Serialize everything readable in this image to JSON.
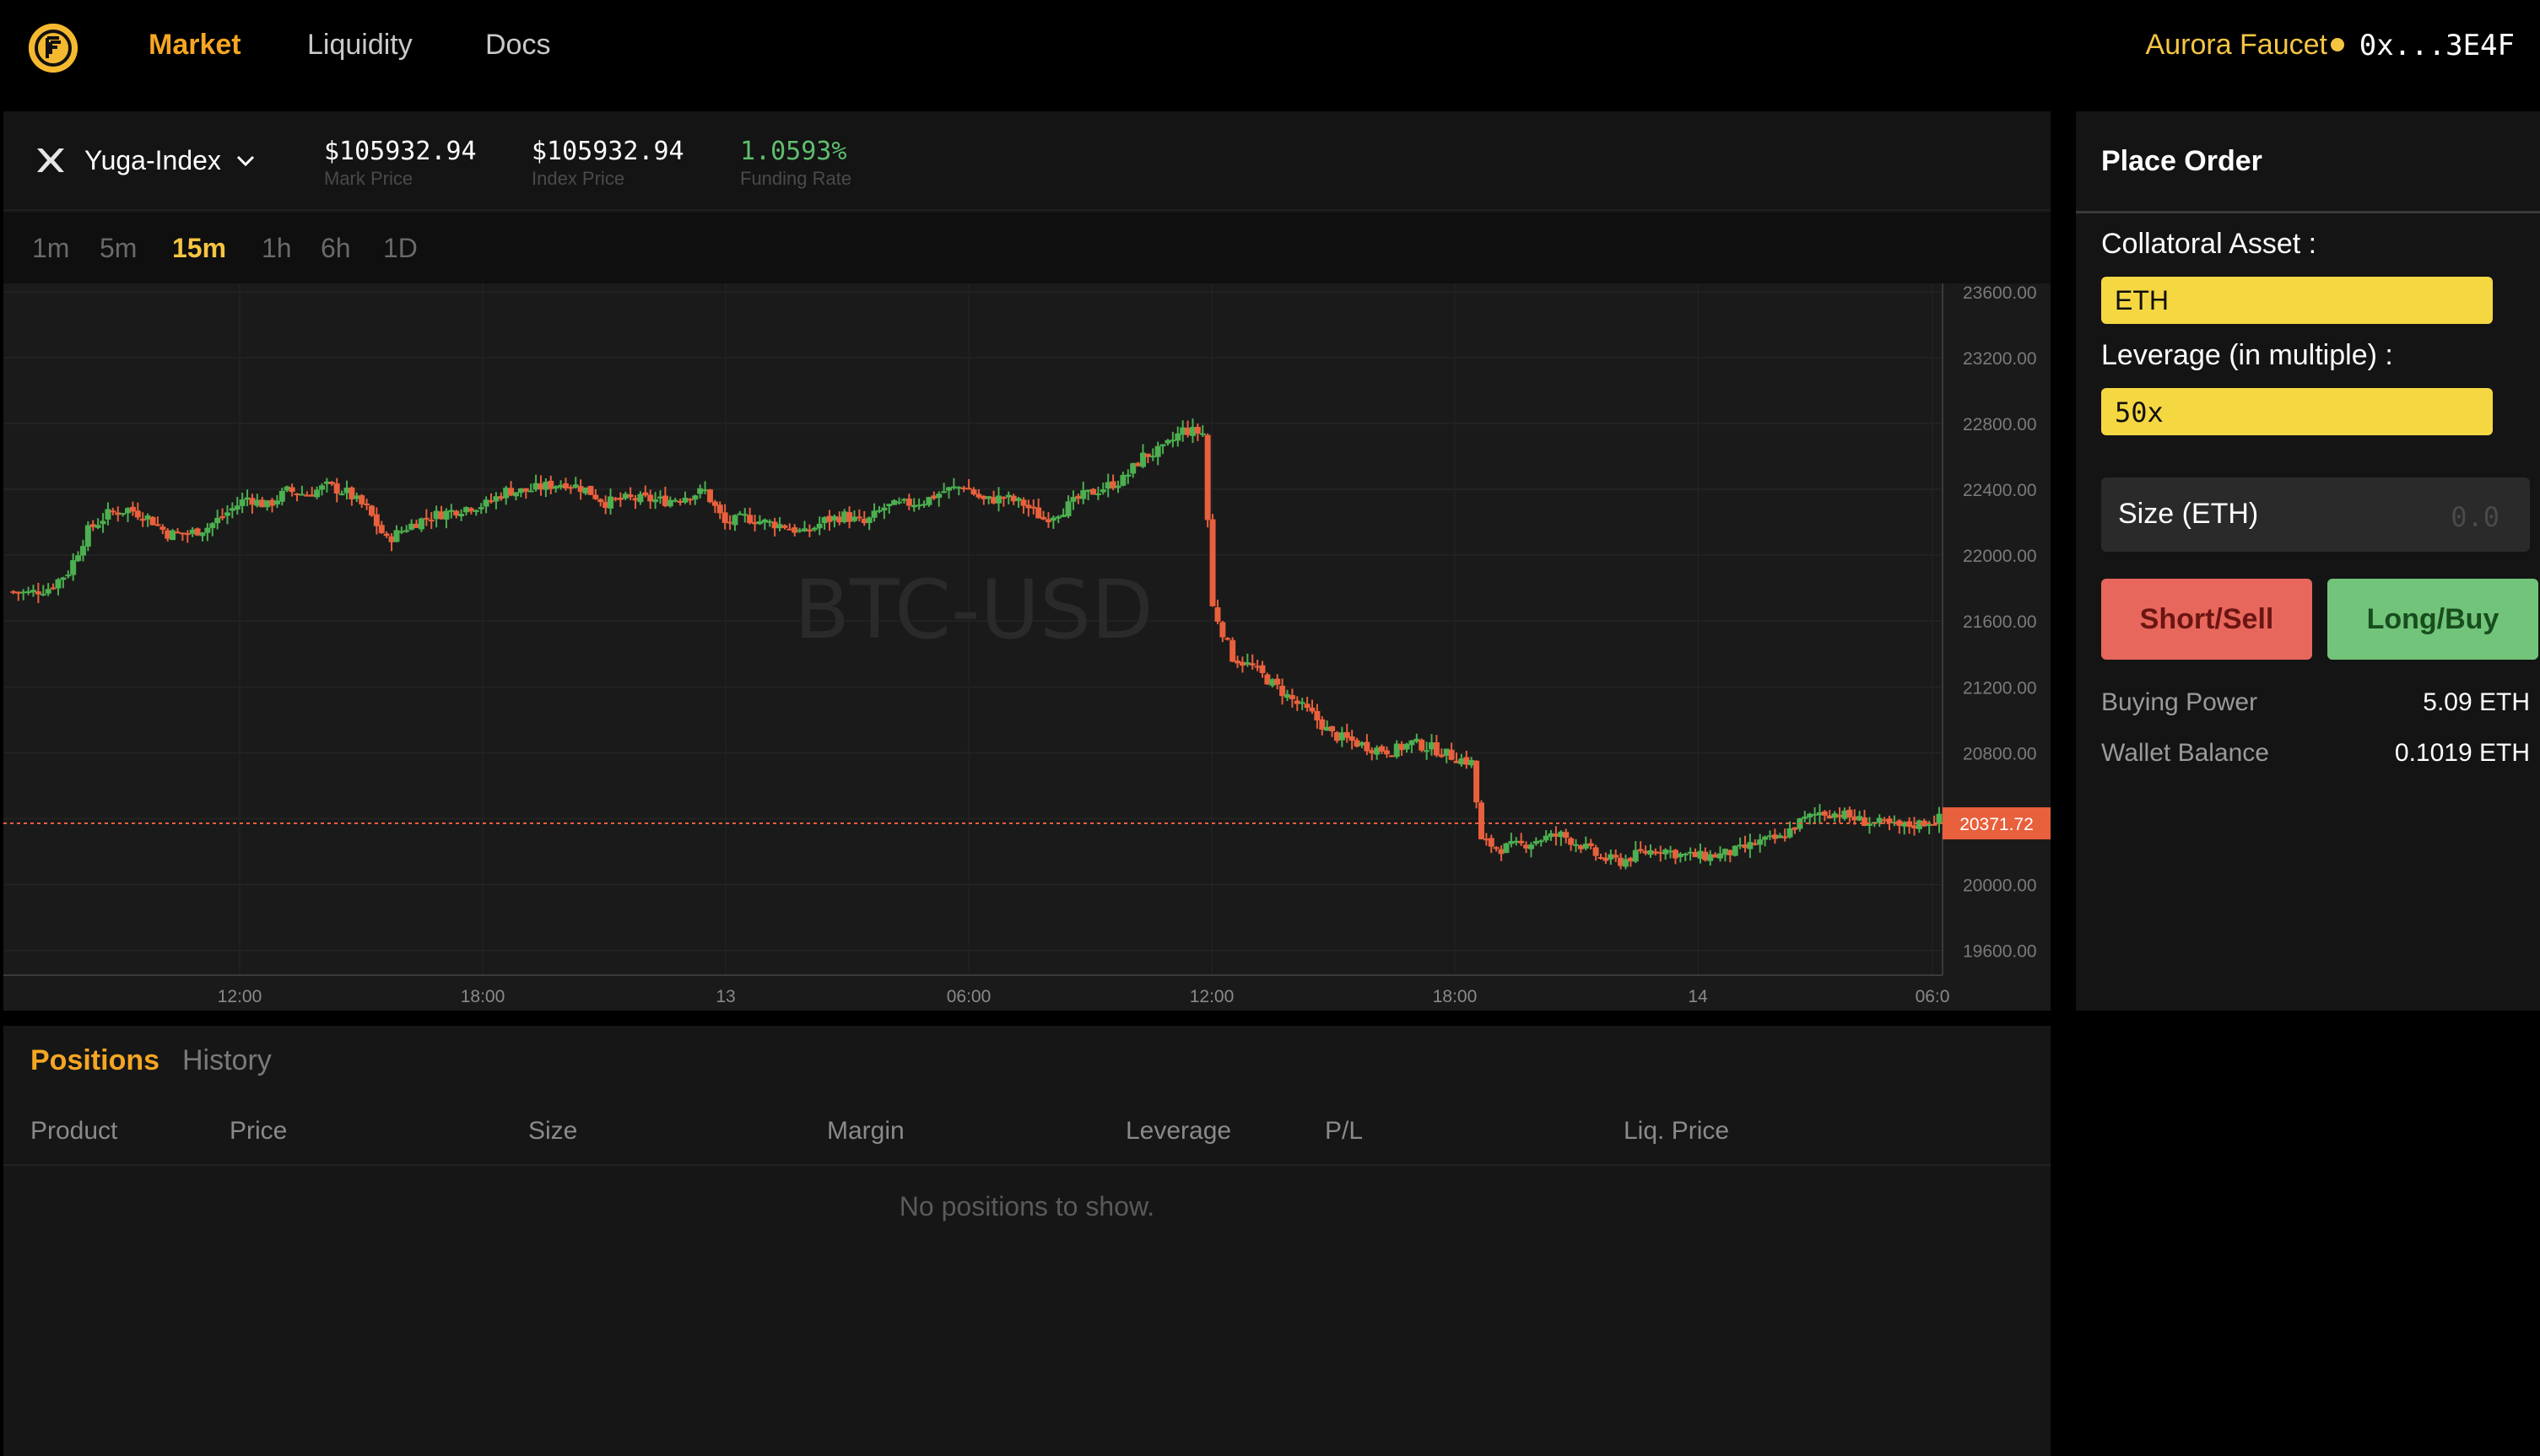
{
  "nav": {
    "items": [
      {
        "label": "Market",
        "active": true
      },
      {
        "label": "Liquidity",
        "active": false
      },
      {
        "label": "Docs",
        "active": false
      }
    ],
    "faucet_label": "Aurora Faucet",
    "wallet_address": "0x...3E4F",
    "wallet_status_color": "#f5c542"
  },
  "market": {
    "pair": "Yuga-Index",
    "pair_icon": "x-logo-icon",
    "mark_price": "$105932.94",
    "mark_price_label": "Mark Price",
    "index_price": "$105932.94",
    "index_price_label": "Index Price",
    "funding_rate": "1.0593%",
    "funding_rate_label": "Funding Rate"
  },
  "intervals": [
    {
      "label": "1m",
      "active": false
    },
    {
      "label": "5m",
      "active": false
    },
    {
      "label": "15m",
      "active": true
    },
    {
      "label": "1h",
      "active": false
    },
    {
      "label": "6h",
      "active": false
    },
    {
      "label": "1D",
      "active": false
    }
  ],
  "chart_data": {
    "type": "candlestick",
    "watermark": "BTC-USD",
    "y_ticks": [
      "23600.00",
      "23200.00",
      "22800.00",
      "22400.00",
      "22000.00",
      "21600.00",
      "21200.00",
      "20800.00",
      "20400.00",
      "20000.00",
      "19600.00"
    ],
    "ylim": [
      19450,
      23650
    ],
    "x_ticks": [
      "12:00",
      "18:00",
      "13",
      "06:00",
      "12:00",
      "18:00",
      "14",
      "06:0"
    ],
    "current_price": "20371.72",
    "current_price_value": 20371.72,
    "up_color": "#4caf50",
    "down_color": "#e8603c",
    "close_path": [
      [
        0,
        21780
      ],
      [
        4,
        21770
      ],
      [
        8,
        21800
      ],
      [
        12,
        21900
      ],
      [
        16,
        22150
      ],
      [
        20,
        22250
      ],
      [
        24,
        22280
      ],
      [
        28,
        22230
      ],
      [
        32,
        22130
      ],
      [
        36,
        22130
      ],
      [
        40,
        22170
      ],
      [
        44,
        22260
      ],
      [
        48,
        22350
      ],
      [
        52,
        22300
      ],
      [
        56,
        22390
      ],
      [
        60,
        22370
      ],
      [
        64,
        22420
      ],
      [
        68,
        22380
      ],
      [
        72,
        22280
      ],
      [
        76,
        22090
      ],
      [
        80,
        22170
      ],
      [
        84,
        22230
      ],
      [
        88,
        22260
      ],
      [
        92,
        22290
      ],
      [
        96,
        22310
      ],
      [
        100,
        22390
      ],
      [
        104,
        22390
      ],
      [
        108,
        22420
      ],
      [
        112,
        22440
      ],
      [
        116,
        22400
      ],
      [
        120,
        22320
      ],
      [
        124,
        22340
      ],
      [
        128,
        22340
      ],
      [
        132,
        22330
      ],
      [
        136,
        22360
      ],
      [
        140,
        22390
      ],
      [
        144,
        22190
      ],
      [
        148,
        22230
      ],
      [
        152,
        22200
      ],
      [
        156,
        22180
      ],
      [
        160,
        22130
      ],
      [
        164,
        22210
      ],
      [
        168,
        22240
      ],
      [
        172,
        22190
      ],
      [
        176,
        22290
      ],
      [
        180,
        22310
      ],
      [
        184,
        22330
      ],
      [
        188,
        22390
      ],
      [
        192,
        22420
      ],
      [
        196,
        22330
      ],
      [
        200,
        22350
      ],
      [
        204,
        22310
      ],
      [
        208,
        22220
      ],
      [
        212,
        22280
      ],
      [
        216,
        22360
      ],
      [
        220,
        22410
      ],
      [
        224,
        22460
      ],
      [
        228,
        22600
      ],
      [
        232,
        22640
      ],
      [
        236,
        22760
      ],
      [
        240,
        22740
      ],
      [
        242,
        21690
      ],
      [
        246,
        21380
      ],
      [
        250,
        21320
      ],
      [
        254,
        21220
      ],
      [
        258,
        21120
      ],
      [
        262,
        21030
      ],
      [
        266,
        20910
      ],
      [
        270,
        20870
      ],
      [
        274,
        20830
      ],
      [
        278,
        20810
      ],
      [
        282,
        20860
      ],
      [
        286,
        20830
      ],
      [
        290,
        20780
      ],
      [
        294,
        20740
      ],
      [
        296,
        20260
      ],
      [
        300,
        20220
      ],
      [
        304,
        20240
      ],
      [
        308,
        20280
      ],
      [
        312,
        20300
      ],
      [
        316,
        20240
      ],
      [
        320,
        20160
      ],
      [
        324,
        20140
      ],
      [
        328,
        20190
      ],
      [
        332,
        20220
      ],
      [
        336,
        20180
      ],
      [
        340,
        20170
      ],
      [
        344,
        20180
      ],
      [
        348,
        20210
      ],
      [
        352,
        20260
      ],
      [
        356,
        20280
      ],
      [
        360,
        20380
      ],
      [
        364,
        20440
      ],
      [
        368,
        20430
      ],
      [
        372,
        20390
      ],
      [
        376,
        20370
      ],
      [
        380,
        20350
      ],
      [
        384,
        20370
      ],
      [
        388,
        20400
      ]
    ]
  },
  "positions": {
    "tabs": [
      {
        "label": "Positions",
        "active": true
      },
      {
        "label": "History",
        "active": false
      }
    ],
    "columns": [
      "Product",
      "Price",
      "Size",
      "Margin",
      "Leverage",
      "P/L",
      "Liq. Price"
    ],
    "empty_message": "No positions to show."
  },
  "order": {
    "title": "Place Order",
    "collateral_label": "Collatoral Asset :",
    "collateral_value": "ETH",
    "leverage_label": "Leverage (in multiple) :",
    "leverage_value": "50x",
    "size_label": "Size (ETH)",
    "size_placeholder": "0.0",
    "sell_label": "Short/Sell",
    "buy_label": "Long/Buy",
    "buying_power_label": "Buying Power",
    "buying_power_value": "5.09 ETH",
    "wallet_balance_label": "Wallet Balance",
    "wallet_balance_value": "0.1019 ETH",
    "accent_color": "#f5d742",
    "sell_color": "#e8675c",
    "buy_color": "#72c47a"
  }
}
